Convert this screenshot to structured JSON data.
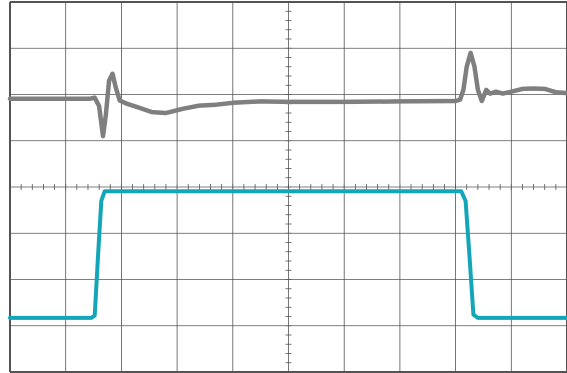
{
  "chart_data": {
    "type": "line",
    "grid": true,
    "divisions": {
      "x": 10,
      "y": 8
    },
    "minor_ticks_per_division": 5,
    "xlim": [
      0,
      10
    ],
    "ylim": [
      -4,
      4
    ],
    "series": [
      {
        "color": "#7f7f7f",
        "points": [
          [
            0,
            1.91
          ],
          [
            1.44,
            1.91
          ],
          [
            1.52,
            1.93
          ],
          [
            1.6,
            1.75
          ],
          [
            1.67,
            1.1
          ],
          [
            1.72,
            1.55
          ],
          [
            1.78,
            2.3
          ],
          [
            1.84,
            2.45
          ],
          [
            1.9,
            2.15
          ],
          [
            1.97,
            1.87
          ],
          [
            2.1,
            1.8
          ],
          [
            2.3,
            1.72
          ],
          [
            2.55,
            1.62
          ],
          [
            2.8,
            1.6
          ],
          [
            3.1,
            1.69
          ],
          [
            3.4,
            1.76
          ],
          [
            3.7,
            1.78
          ],
          [
            4.0,
            1.82
          ],
          [
            4.5,
            1.85
          ],
          [
            5.0,
            1.84
          ],
          [
            6.0,
            1.84
          ],
          [
            7.0,
            1.85
          ],
          [
            8.0,
            1.86
          ],
          [
            8.08,
            1.89
          ],
          [
            8.14,
            2.1
          ],
          [
            8.2,
            2.6
          ],
          [
            8.27,
            2.9
          ],
          [
            8.34,
            2.6
          ],
          [
            8.4,
            2.1
          ],
          [
            8.47,
            1.86
          ],
          [
            8.55,
            2.1
          ],
          [
            8.62,
            2.02
          ],
          [
            8.72,
            2.06
          ],
          [
            8.85,
            2.02
          ],
          [
            9.0,
            2.06
          ],
          [
            9.2,
            2.12
          ],
          [
            9.4,
            2.13
          ],
          [
            9.6,
            2.12
          ],
          [
            9.8,
            2.05
          ],
          [
            10.0,
            2.03
          ]
        ]
      },
      {
        "color": "#13a6b9",
        "points": [
          [
            0,
            -2.83
          ],
          [
            1.46,
            -2.83
          ],
          [
            1.52,
            -2.78
          ],
          [
            1.58,
            -1.5
          ],
          [
            1.64,
            -0.3
          ],
          [
            1.7,
            -0.09
          ],
          [
            2.5,
            -0.09
          ],
          [
            5.0,
            -0.09
          ],
          [
            8.1,
            -0.09
          ],
          [
            8.18,
            -0.3
          ],
          [
            8.25,
            -1.5
          ],
          [
            8.32,
            -2.76
          ],
          [
            8.4,
            -2.83
          ],
          [
            10.0,
            -2.83
          ]
        ]
      }
    ]
  }
}
